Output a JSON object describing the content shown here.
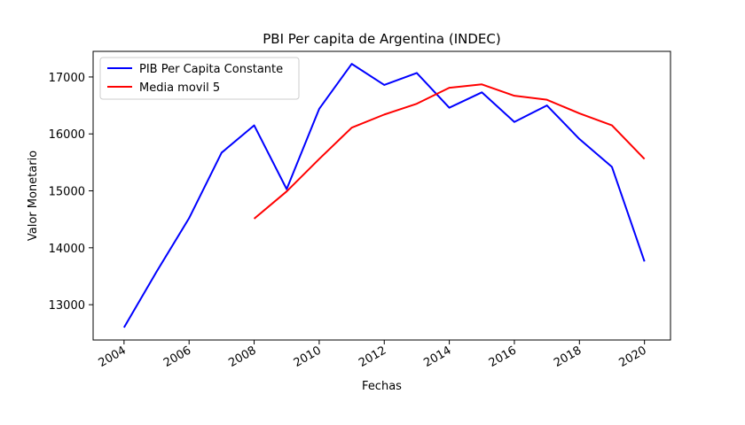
{
  "chart_data": {
    "type": "line",
    "title": "PBI Per capita de Argentina (INDEC)",
    "xlabel": "Fechas",
    "ylabel": "Valor Monetario",
    "xlim": [
      2003.05,
      2020.8
    ],
    "ylim": [
      12380,
      17450
    ],
    "xticks": [
      2004,
      2006,
      2008,
      2010,
      2012,
      2014,
      2016,
      2018,
      2020
    ],
    "yticks": [
      13000,
      14000,
      15000,
      16000,
      17000
    ],
    "grid": false,
    "legend_position": "top-left",
    "series": [
      {
        "name": "PIB Per Capita Constante",
        "color": "#0000ff",
        "x": [
          2004,
          2005,
          2006,
          2007,
          2008,
          2009,
          2010,
          2011,
          2012,
          2013,
          2014,
          2015,
          2016,
          2017,
          2018,
          2019,
          2020
        ],
        "y": [
          12600,
          13580,
          14520,
          15670,
          16150,
          15030,
          16440,
          17230,
          16860,
          17070,
          16460,
          16730,
          16210,
          16500,
          15910,
          15420,
          13760
        ]
      },
      {
        "name": "Media movil 5",
        "color": "#ff0000",
        "x": [
          2008,
          2009,
          2010,
          2011,
          2012,
          2013,
          2014,
          2015,
          2016,
          2017,
          2018,
          2019,
          2020
        ],
        "y": [
          14510,
          14990,
          15560,
          16110,
          16340,
          16530,
          16810,
          16870,
          16670,
          16600,
          16360,
          16150,
          15560
        ]
      }
    ]
  }
}
